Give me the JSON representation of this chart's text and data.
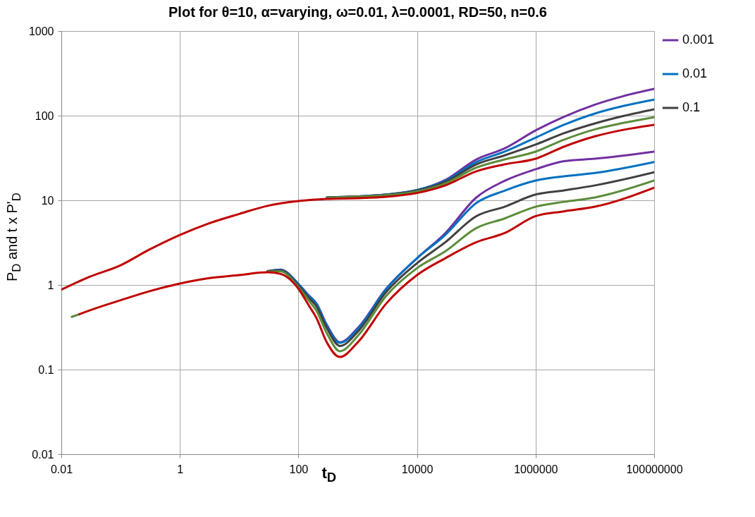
{
  "chart_data": {
    "type": "line",
    "title": "Plot for θ=10, α=varying, ω=0.01, λ=0.0001, RD=50, n=0.6",
    "xlabel": "t$_{D}$",
    "ylabel": "P$_{D}$ and t x P'$_{D}$",
    "log": "xy",
    "grid": true,
    "legend": "right",
    "line_style": "solid",
    "marker": "none",
    "xlim": [
      0.01,
      100000000
    ],
    "xticks": [
      0.01,
      1,
      100,
      10000,
      1000000,
      100000000
    ],
    "ylim": [
      0.01,
      1000
    ],
    "yticks": [
      0.01,
      0.1,
      1,
      10,
      100,
      1000
    ],
    "series": [
      {
        "name": "0.001",
        "color": "#7030a0",
        "x": [
          300,
          1000,
          3000,
          10000,
          30000,
          100000,
          300000,
          1000000,
          3000000,
          10000000,
          30000000,
          100000000
        ],
        "values": [
          10.8,
          11.1,
          11.7,
          13.2,
          17.4,
          30.4,
          41,
          67,
          97,
          135,
          170,
          207
        ]
      },
      {
        "name": "0.01",
        "color": "#0070c0",
        "x": [
          300,
          1000,
          3000,
          10000,
          30000,
          100000,
          300000,
          1000000,
          3000000,
          10000000,
          30000000,
          100000000
        ],
        "values": [
          10.8,
          11.1,
          11.7,
          13.2,
          17,
          28.3,
          37.6,
          55,
          78,
          106,
          130,
          155
        ]
      },
      {
        "name": "0.1",
        "color": "#404040",
        "x": [
          300,
          1000,
          3000,
          10000,
          30000,
          100000,
          300000,
          1000000,
          3000000,
          10000000,
          30000000,
          100000000
        ],
        "values": [
          10.8,
          11.1,
          11.6,
          13,
          16.5,
          26.6,
          34,
          45.6,
          62,
          81,
          99,
          119
        ]
      },
      {
        "color": "#5b8c3a",
        "x": [
          300,
          1000,
          3000,
          10000,
          30000,
          100000,
          300000,
          1000000,
          3000000,
          10000000,
          30000000,
          100000000
        ],
        "values": [
          10.7,
          11,
          11.5,
          12.7,
          15.8,
          24.3,
          30.4,
          37.6,
          52,
          69,
          82,
          96
        ]
      },
      {
        "color": "#c00000",
        "x": [
          0.01,
          0.03,
          0.1,
          0.3,
          1,
          3,
          10,
          30,
          100,
          300,
          1000,
          3000,
          10000,
          30000,
          100000,
          300000,
          1000000,
          3000000,
          10000000,
          30000000,
          100000000
        ],
        "values": [
          0.88,
          1.25,
          1.71,
          2.6,
          3.9,
          5.3,
          6.9,
          8.6,
          9.8,
          10.4,
          10.6,
          11,
          12.2,
          15,
          22,
          26.6,
          31,
          43,
          57,
          68,
          78
        ]
      },
      {
        "color": "#7030a0",
        "x": [
          30,
          50,
          100,
          150,
          200,
          300,
          500,
          1000,
          3000,
          10000,
          30000,
          100000,
          300000,
          1000000,
          3000000,
          10000000,
          100000000
        ],
        "values": [
          1.46,
          1.52,
          1.03,
          0.75,
          0.61,
          0.34,
          0.21,
          0.31,
          0.9,
          2.07,
          4.1,
          10.8,
          17,
          23.3,
          29,
          31,
          37.6
        ]
      },
      {
        "color": "#0070c0",
        "x": [
          30,
          50,
          100,
          150,
          200,
          300,
          500,
          1000,
          3000,
          10000,
          30000,
          100000,
          300000,
          1000000,
          3000000,
          10000000,
          100000000
        ],
        "values": [
          1.45,
          1.5,
          1.02,
          0.74,
          0.6,
          0.33,
          0.207,
          0.3,
          0.89,
          2.07,
          3.9,
          9.3,
          13,
          17.1,
          19.2,
          21,
          28.3
        ]
      },
      {
        "color": "#404040",
        "x": [
          30,
          50,
          100,
          150,
          200,
          300,
          500,
          1000,
          3000,
          10000,
          30000,
          100000,
          300000,
          1000000,
          3000000,
          10000000,
          100000000
        ],
        "values": [
          1.45,
          1.48,
          0.98,
          0.7,
          0.56,
          0.31,
          0.19,
          0.28,
          0.82,
          1.81,
          3.2,
          6.5,
          8.4,
          11.7,
          13.1,
          15,
          21.5
        ]
      },
      {
        "color": "#5b8c3a",
        "x": [
          0.015,
          0.02
        ],
        "values": [
          0.42,
          0.45
        ]
      },
      {
        "color": "#5b8c3a",
        "x": [
          30,
          50,
          100,
          150,
          200,
          300,
          500,
          1000,
          3000,
          10000,
          30000,
          100000,
          300000,
          1000000,
          3000000,
          10000000,
          100000000
        ],
        "values": [
          1.44,
          1.45,
          0.94,
          0.65,
          0.5,
          0.27,
          0.165,
          0.25,
          0.74,
          1.58,
          2.5,
          4.7,
          6.1,
          8.4,
          9.6,
          10.8,
          17.1
        ]
      },
      {
        "color": "#c00000",
        "x": [
          0.02,
          0.03,
          0.1,
          0.3,
          1,
          3,
          10,
          30,
          50,
          100,
          150,
          200,
          300,
          500,
          1000,
          3000,
          10000,
          30000,
          100000,
          300000,
          1000000,
          3000000,
          10000000,
          100000000
        ],
        "values": [
          0.45,
          0.5,
          0.66,
          0.84,
          1.04,
          1.2,
          1.31,
          1.41,
          1.35,
          0.9,
          0.57,
          0.41,
          0.21,
          0.141,
          0.21,
          0.6,
          1.31,
          2.07,
          3.2,
          4.1,
          6.5,
          7.4,
          8.4,
          14.1
        ]
      }
    ]
  }
}
